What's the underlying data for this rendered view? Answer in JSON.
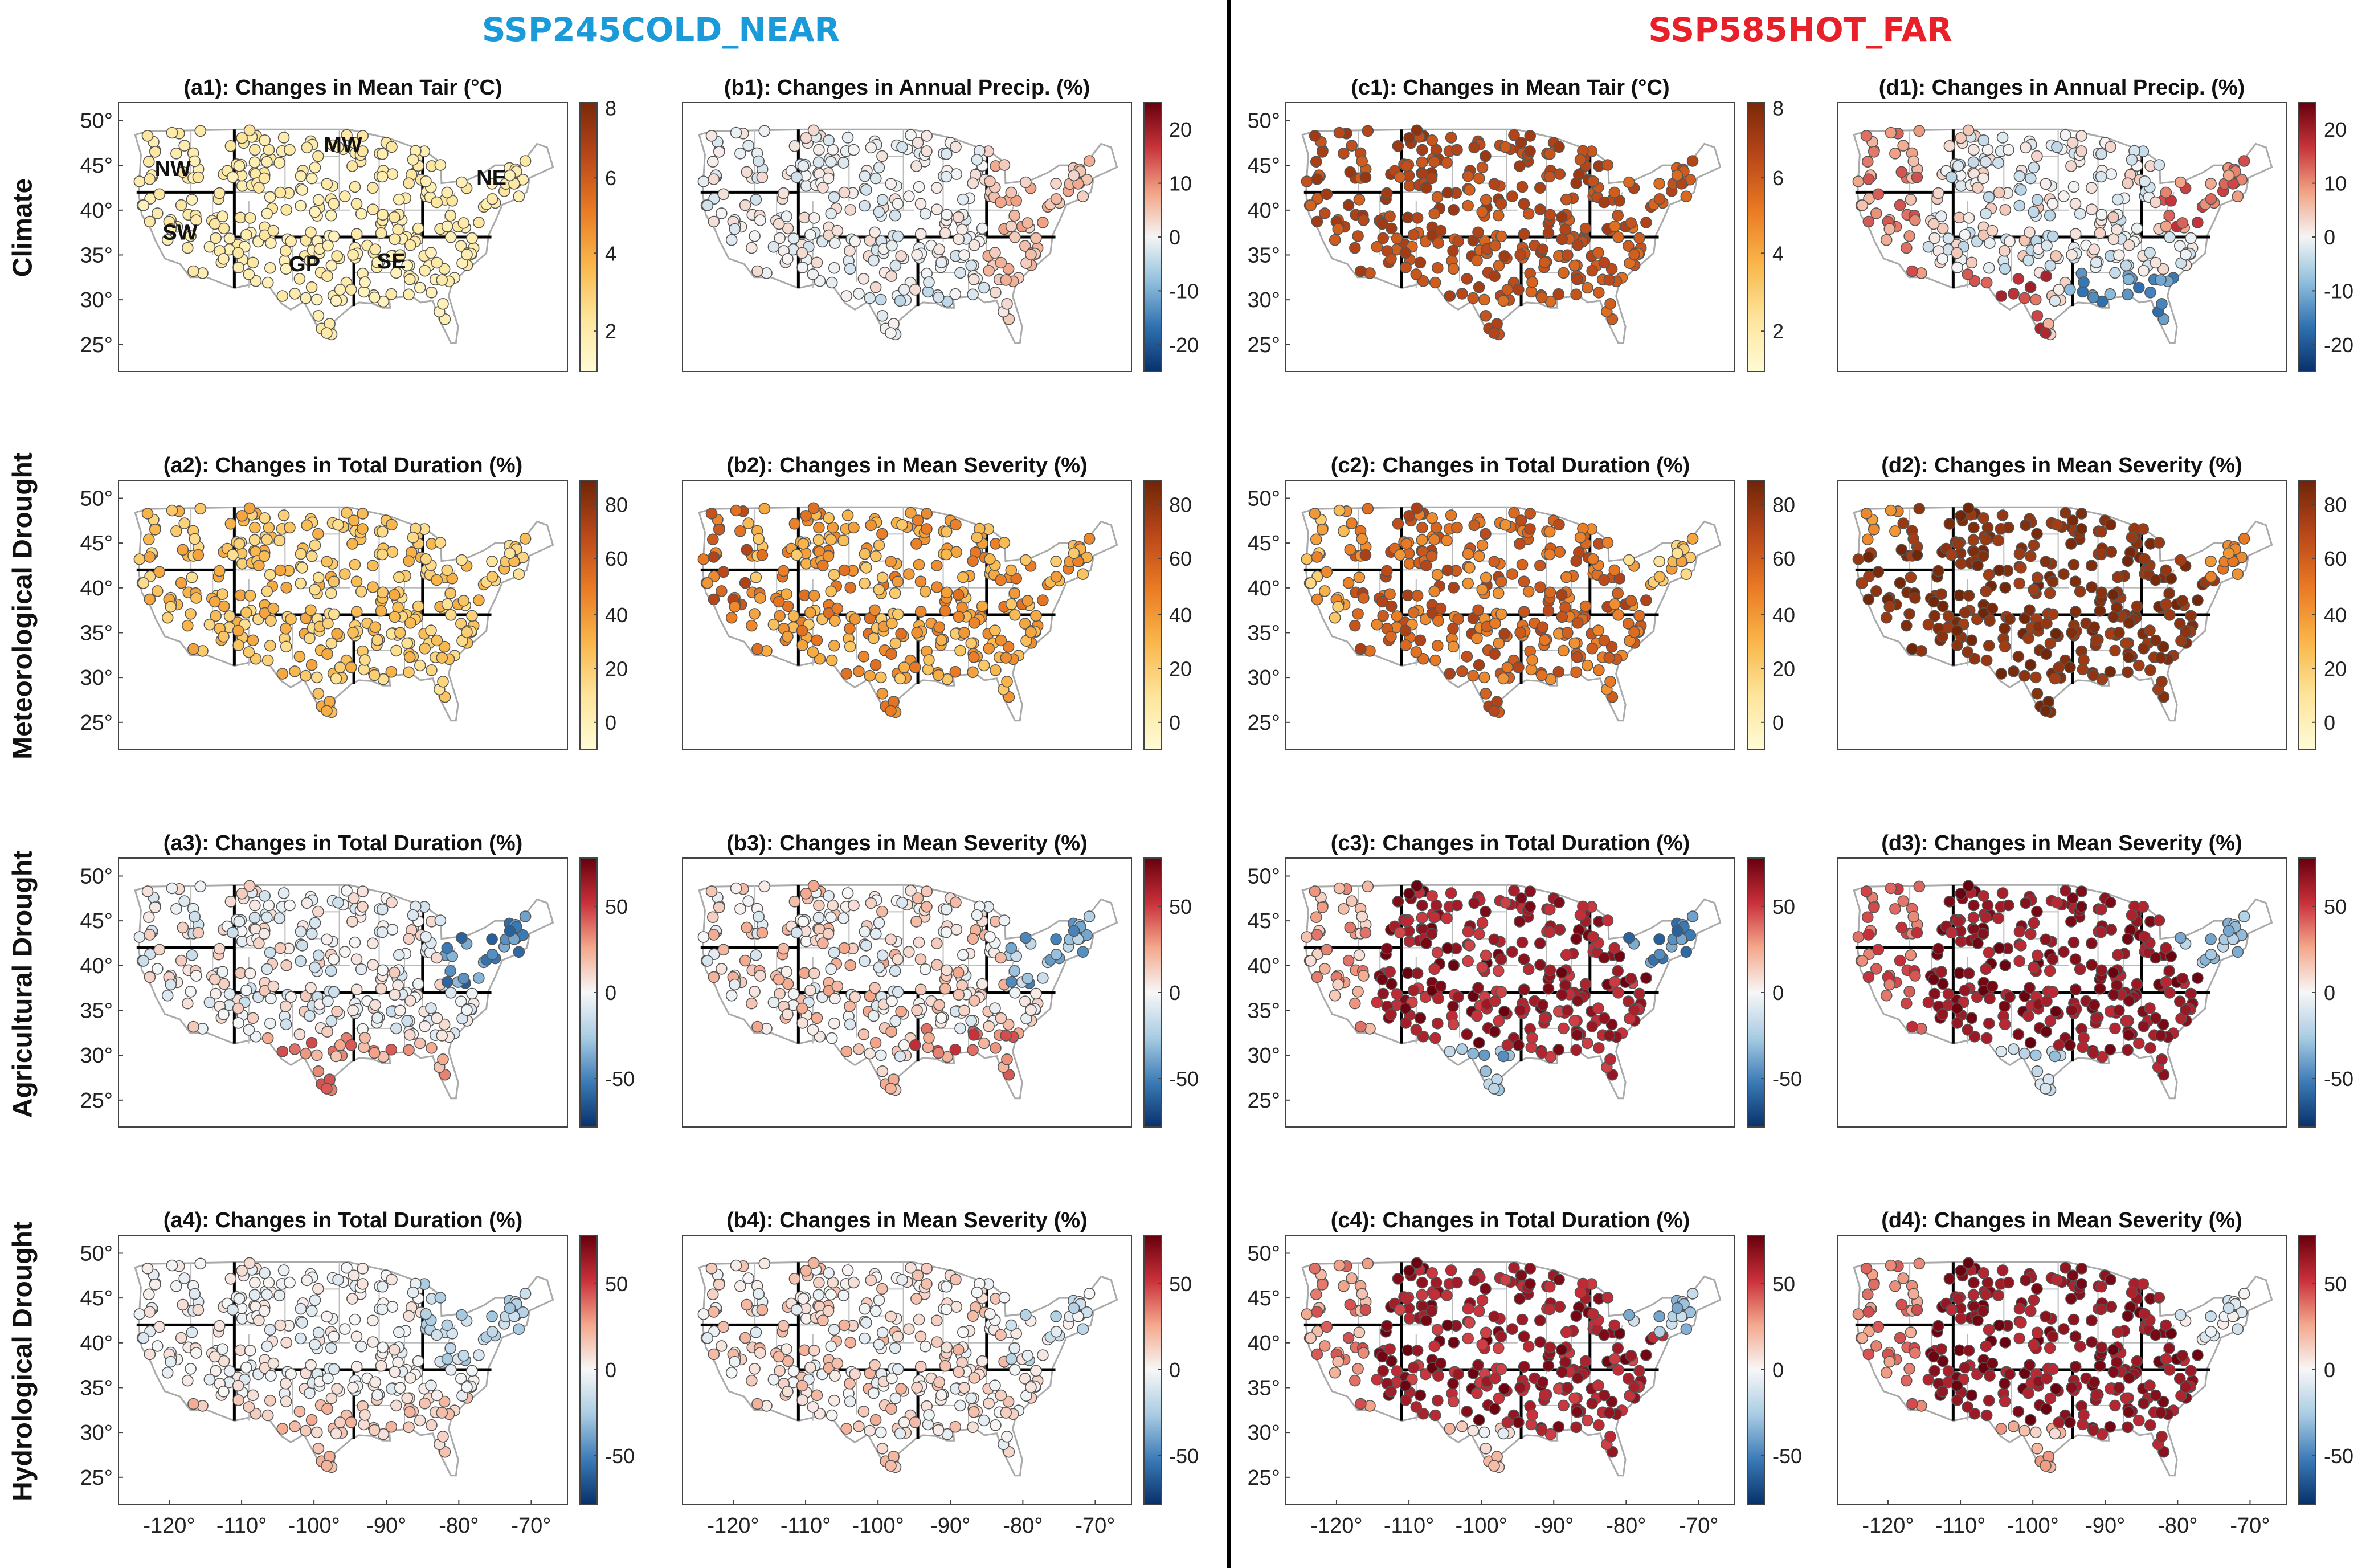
{
  "scenarios": [
    {
      "label": "SSP245COLD_NEAR",
      "color": "#1a9ad9"
    },
    {
      "label": "SSP585HOT_FAR",
      "color": "#e8202a"
    }
  ],
  "row_labels": [
    "Climate",
    "Meteorological Drought",
    "Agricultural Drought",
    "Hydrological Drought"
  ],
  "axes": {
    "x_ticks": [
      "-120°",
      "-110°",
      "-100°",
      "-90°",
      "-80°",
      "-70°"
    ],
    "y_ticks": [
      "50°",
      "45°",
      "40°",
      "35°",
      "30°",
      "25°"
    ]
  },
  "region_labels": [
    "NW",
    "MW",
    "NE",
    "SW",
    "GP",
    "SE"
  ],
  "colormaps": {
    "temp": {
      "stops": [
        "#fffbd6",
        "#fde59a",
        "#f9b64a",
        "#ea7a23",
        "#b9471a",
        "#7a2808"
      ],
      "ticks": [
        "8",
        "6",
        "4",
        "2"
      ]
    },
    "precip": {
      "stops": [
        "#08316b",
        "#2f71b0",
        "#8fbfdd",
        "#f5f5f5",
        "#f2a385",
        "#c7343a",
        "#67000d"
      ],
      "ticks": [
        "20",
        "10",
        "0",
        "-10",
        "-20"
      ]
    },
    "drought_pos": {
      "stops": [
        "#fffbd6",
        "#fde59a",
        "#f9b64a",
        "#ea7a23",
        "#b9471a",
        "#6e2507"
      ],
      "ticks": [
        "80",
        "60",
        "40",
        "20",
        "0"
      ]
    },
    "drought_div": {
      "stops": [
        "#08316b",
        "#3b7bb6",
        "#a9cce3",
        "#f7f7f7",
        "#f4a88c",
        "#c9303a",
        "#67000d"
      ],
      "ticks": [
        "50",
        "0",
        "-50"
      ]
    }
  },
  "panels": [
    {
      "id": "a1",
      "title": "(a1): Changes in Mean Tair (°C)",
      "cmap": "temp",
      "scheme": "temp_low"
    },
    {
      "id": "b1",
      "title": "(b1): Changes in Annual Precip. (%)",
      "cmap": "precip",
      "scheme": "precip_low"
    },
    {
      "id": "c1",
      "title": "(c1): Changes in Mean Tair (°C)",
      "cmap": "temp",
      "scheme": "temp_high"
    },
    {
      "id": "d1",
      "title": "(d1): Changes in Annual Precip. (%)",
      "cmap": "precip",
      "scheme": "precip_high"
    },
    {
      "id": "a2",
      "title": "(a2): Changes in Total Duration (%)",
      "cmap": "drought_pos",
      "scheme": "met_low"
    },
    {
      "id": "b2",
      "title": "(b2): Changes in Mean Severity (%)",
      "cmap": "drought_pos",
      "scheme": "met_mid"
    },
    {
      "id": "c2",
      "title": "(c2): Changes in Total Duration (%)",
      "cmap": "drought_pos",
      "scheme": "met_high"
    },
    {
      "id": "d2",
      "title": "(d2): Changes in Mean Severity (%)",
      "cmap": "drought_pos",
      "scheme": "met_max"
    },
    {
      "id": "a3",
      "title": "(a3): Changes in Total Duration (%)",
      "cmap": "drought_div",
      "scheme": "ag_low"
    },
    {
      "id": "b3",
      "title": "(b3): Changes in Mean Severity (%)",
      "cmap": "drought_div",
      "scheme": "ag_low2"
    },
    {
      "id": "c3",
      "title": "(c3): Changes in Total Duration (%)",
      "cmap": "drought_div",
      "scheme": "ag_high"
    },
    {
      "id": "d3",
      "title": "(d3): Changes in Mean Severity (%)",
      "cmap": "drought_div",
      "scheme": "ag_high2"
    },
    {
      "id": "a4",
      "title": "(a4): Changes in Total Duration (%)",
      "cmap": "drought_div",
      "scheme": "hy_low"
    },
    {
      "id": "b4",
      "title": "(b4): Changes in Mean Severity (%)",
      "cmap": "drought_div",
      "scheme": "hy_low2"
    },
    {
      "id": "c4",
      "title": "(c4): Changes in Total Duration (%)",
      "cmap": "drought_div",
      "scheme": "hy_high"
    },
    {
      "id": "d4",
      "title": "(d4): Changes in Mean Severity (%)",
      "cmap": "drought_div",
      "scheme": "hy_high2"
    }
  ]
}
